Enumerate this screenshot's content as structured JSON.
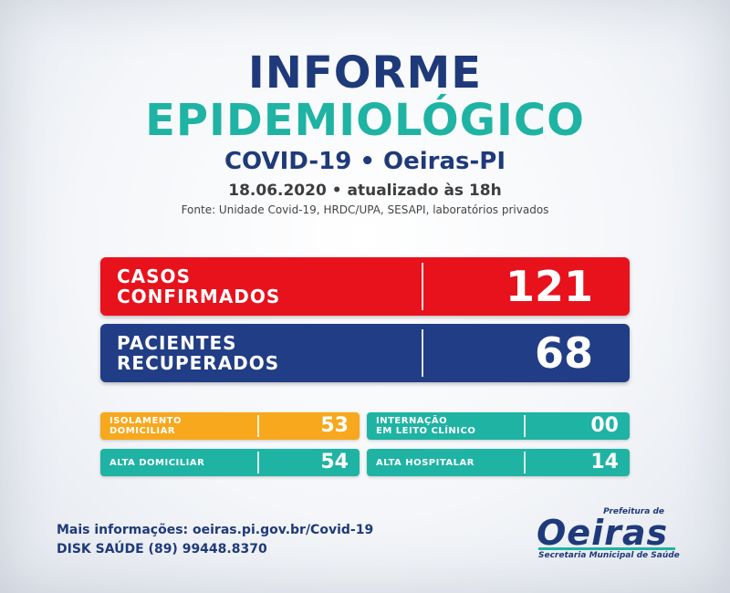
{
  "header": {
    "title_line1": "INFORME",
    "title_line2": "EPIDEMIOLÓGICO",
    "subtitle": "COVID-19 • Oeiras-PI",
    "date_line": "18.06.2020 • atualizado às 18h",
    "source": "Fonte: Unidade Covid-19, HRDC/UPA, SESAPI, laboratórios privados"
  },
  "main_stats": [
    {
      "label_line1": "CASOS",
      "label_line2": "CONFIRMADOS",
      "value": "121",
      "color": "#e8121c"
    },
    {
      "label_line1": "PACIENTES",
      "label_line2": "RECUPERADOS",
      "value": "68",
      "color": "#213d85"
    }
  ],
  "small_stats": [
    {
      "label": "ISOLAMENTO\nDOMICILIAR",
      "value": "53",
      "color": "#f7a81c"
    },
    {
      "label": "INTERNAÇÃO\nEM LEITO CLÍNICO",
      "value": "00",
      "color": "#1fb3a4"
    },
    {
      "label": "ALTA DOMICILIAR",
      "value": "54",
      "color": "#1fb3a4"
    },
    {
      "label": "ALTA HOSPITALAR",
      "value": "14",
      "color": "#1fb3a4"
    }
  ],
  "footer": {
    "more_info": "Mais informações: oeiras.pi.gov.br/Covid-19",
    "disk_saude": "DISK SAÚDE (89) 99448.8370"
  },
  "logo": {
    "prefeitura": "Prefeitura de",
    "name": "Oeiras",
    "secretaria": "Secretaria Municipal de Saúde"
  }
}
